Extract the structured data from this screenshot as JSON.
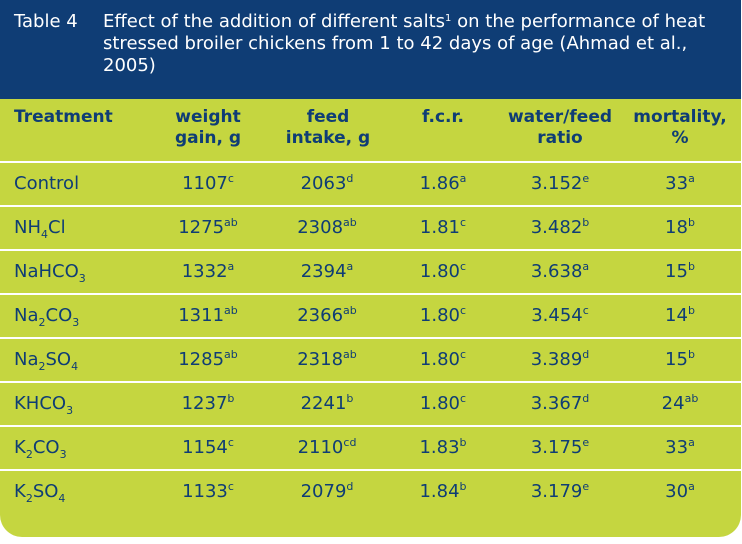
{
  "table": {
    "label": "Table 4",
    "caption_part1": "Effect of the addition of different salts",
    "caption_sup": "1",
    "caption_part2": " on the performance of heat stressed broiler chickens from 1 to 42 days of age (Ahmad et al., 2005)",
    "headers": [
      {
        "line1": "Treatment",
        "line2": ""
      },
      {
        "line1": "weight",
        "line2": "gain, g"
      },
      {
        "line1": "feed",
        "line2": "intake, g"
      },
      {
        "line1": "f.c.r.",
        "line2": ""
      },
      {
        "line1": "water/feed",
        "line2": "ratio"
      },
      {
        "line1": "mortality,",
        "line2": "%"
      }
    ],
    "rows": [
      {
        "treatment": [
          {
            "t": "Control"
          }
        ],
        "cells": [
          [
            "1107",
            "c"
          ],
          [
            "2063",
            "d"
          ],
          [
            "1.86",
            "a"
          ],
          [
            "3.152",
            "e"
          ],
          [
            "33",
            "a"
          ]
        ]
      },
      {
        "treatment": [
          {
            "t": "NH"
          },
          {
            "sub": "4"
          },
          {
            "t": "Cl"
          }
        ],
        "cells": [
          [
            "1275",
            "ab"
          ],
          [
            "2308",
            "ab"
          ],
          [
            "1.81",
            "c"
          ],
          [
            "3.482",
            "b"
          ],
          [
            "18",
            "b"
          ]
        ]
      },
      {
        "treatment": [
          {
            "t": "NaHCO"
          },
          {
            "sub": "3"
          }
        ],
        "cells": [
          [
            "1332",
            "a"
          ],
          [
            "2394",
            "a"
          ],
          [
            "1.80",
            "c"
          ],
          [
            "3.638",
            "a"
          ],
          [
            "15",
            "b"
          ]
        ]
      },
      {
        "treatment": [
          {
            "t": "Na"
          },
          {
            "sub": "2"
          },
          {
            "t": "CO"
          },
          {
            "sub": "3"
          }
        ],
        "cells": [
          [
            "1311",
            "ab"
          ],
          [
            "2366",
            "ab"
          ],
          [
            "1.80",
            "c"
          ],
          [
            "3.454",
            "c"
          ],
          [
            "14",
            "b"
          ]
        ]
      },
      {
        "treatment": [
          {
            "t": "Na"
          },
          {
            "sub": "2"
          },
          {
            "t": "SO"
          },
          {
            "sub": "4"
          }
        ],
        "cells": [
          [
            "1285",
            "ab"
          ],
          [
            "2318",
            "ab"
          ],
          [
            "1.80",
            "c"
          ],
          [
            "3.389",
            "d"
          ],
          [
            "15",
            "b"
          ]
        ]
      },
      {
        "treatment": [
          {
            "t": "KHCO"
          },
          {
            "sub": "3"
          }
        ],
        "cells": [
          [
            "1237",
            "b"
          ],
          [
            "2241",
            "b"
          ],
          [
            "1.80",
            "c"
          ],
          [
            "3.367",
            "d"
          ],
          [
            "24",
            "ab"
          ]
        ]
      },
      {
        "treatment": [
          {
            "t": "K"
          },
          {
            "sub": "2"
          },
          {
            "t": "CO"
          },
          {
            "sub": "3"
          }
        ],
        "cells": [
          [
            "1154",
            "c"
          ],
          [
            "2110",
            "cd"
          ],
          [
            "1.83",
            "b"
          ],
          [
            "3.175",
            "e"
          ],
          [
            "33",
            "a"
          ]
        ]
      },
      {
        "treatment": [
          {
            "t": "K"
          },
          {
            "sub": "2"
          },
          {
            "t": "SO"
          },
          {
            "sub": "4"
          }
        ],
        "cells": [
          [
            "1133",
            "c"
          ],
          [
            "2079",
            "d"
          ],
          [
            "1.84",
            "b"
          ],
          [
            "3.179",
            "e"
          ],
          [
            "30",
            "a"
          ]
        ]
      }
    ]
  }
}
